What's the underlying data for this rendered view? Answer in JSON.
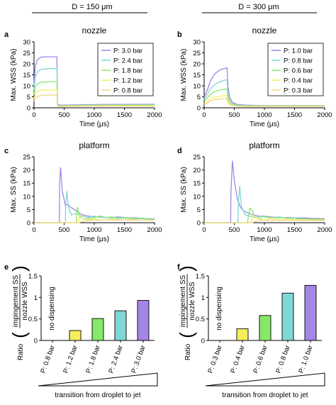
{
  "columns": [
    {
      "header": "D = 150 μm"
    },
    {
      "header": "D = 300 μm"
    }
  ],
  "colors": [
    "#a585e6",
    "#7fd8d5",
    "#86e86a",
    "#f5ee5a",
    "#f0d58a"
  ],
  "chart_data": [
    {
      "panel": "a",
      "type": "line",
      "title": "nozzle",
      "xlabel": "Time (μs)",
      "ylabel": "Max. WSS (kPa)",
      "xlim": [
        0,
        2000
      ],
      "ylim": [
        0,
        30
      ],
      "xticks": [
        0,
        500,
        1000,
        1500,
        2000
      ],
      "yticks": [
        0,
        5,
        10,
        15,
        20,
        25,
        30
      ],
      "legend": "top-right",
      "series": [
        {
          "name": "P: 3.0 bar",
          "x": [
            0,
            20,
            60,
            120,
            180,
            250,
            300,
            360,
            380,
            390,
            450,
            600,
            800,
            1200,
            2000
          ],
          "y": [
            10,
            19,
            22,
            23.1,
            23.2,
            23.2,
            23.2,
            23.2,
            23.2,
            1.5,
            1.2,
            1.3,
            1.4,
            1.5,
            1.6
          ]
        },
        {
          "name": "P: 2.4 bar",
          "x": [
            0,
            20,
            60,
            120,
            180,
            250,
            300,
            360,
            380,
            390,
            450,
            600,
            800,
            1200,
            2000
          ],
          "y": [
            8,
            14,
            16.5,
            17.5,
            17.7,
            17.8,
            17.8,
            17.8,
            17.8,
            1.2,
            1,
            1.1,
            1.2,
            1.3,
            1.4
          ]
        },
        {
          "name": "P: 1.8 bar",
          "x": [
            0,
            20,
            60,
            120,
            180,
            250,
            300,
            360,
            380,
            390,
            450,
            600,
            800,
            1200,
            2000
          ],
          "y": [
            6,
            9.5,
            11,
            11.6,
            11.7,
            11.8,
            11.8,
            11.8,
            11.8,
            1,
            0.9,
            1,
            1.1,
            1.2,
            1.2
          ]
        },
        {
          "name": "P: 1.2 bar",
          "x": [
            0,
            20,
            60,
            120,
            180,
            250,
            300,
            360,
            380,
            390,
            450,
            600,
            800,
            1200,
            2000
          ],
          "y": [
            4,
            6.5,
            7.6,
            8,
            8.1,
            8.1,
            8.1,
            8.1,
            8.1,
            0.8,
            0.7,
            0.8,
            0.9,
            1,
            1
          ]
        },
        {
          "name": "P: 0.8 bar",
          "x": [
            0,
            20,
            60,
            120,
            180,
            250,
            300,
            360,
            380,
            390,
            450,
            600,
            800,
            1200,
            2000
          ],
          "y": [
            3,
            4.5,
            5.2,
            5.6,
            5.7,
            5.8,
            5.8,
            5.8,
            5.8,
            0.6,
            0.6,
            0.7,
            0.8,
            0.8,
            0.8
          ]
        }
      ]
    },
    {
      "panel": "b",
      "type": "line",
      "title": "nozzle",
      "xlabel": "Time (μs)",
      "ylabel": "Max. WSS (kPa)",
      "xlim": [
        0,
        2000
      ],
      "ylim": [
        0,
        30
      ],
      "xticks": [
        0,
        500,
        1000,
        1500,
        2000
      ],
      "yticks": [
        0,
        5,
        10,
        15,
        20,
        25,
        30
      ],
      "legend": "top-right",
      "series": [
        {
          "name": "P: 1.0 bar",
          "x": [
            0,
            50,
            100,
            150,
            200,
            250,
            300,
            350,
            380,
            395,
            420,
            470,
            550,
            700,
            1000,
            2000
          ],
          "y": [
            5,
            8,
            12,
            14.5,
            16,
            17,
            17.6,
            18,
            18.2,
            10,
            5,
            2.5,
            1.5,
            1.2,
            1,
            1
          ]
        },
        {
          "name": "P: 0.8 bar",
          "x": [
            0,
            50,
            100,
            150,
            200,
            250,
            300,
            350,
            380,
            395,
            420,
            470,
            550,
            700,
            1000,
            2000
          ],
          "y": [
            4,
            6,
            8.5,
            10,
            11,
            11.8,
            12.2,
            12.6,
            12.8,
            7,
            3.5,
            2,
            1.3,
            1,
            0.9,
            0.9
          ]
        },
        {
          "name": "P: 0.6 bar",
          "x": [
            0,
            50,
            100,
            150,
            200,
            250,
            300,
            350,
            380,
            395,
            420,
            470,
            550,
            700,
            1000,
            2000
          ],
          "y": [
            3,
            4.5,
            6,
            7,
            7.6,
            8,
            8.3,
            8.5,
            8.6,
            5,
            2.5,
            1.5,
            1,
            0.8,
            0.8,
            0.8
          ]
        },
        {
          "name": "P: 0.4 bar",
          "x": [
            0,
            50,
            100,
            150,
            200,
            250,
            300,
            350,
            380,
            395,
            420,
            470,
            550,
            700,
            1000,
            2000
          ],
          "y": [
            2,
            3,
            4,
            4.6,
            5,
            5.2,
            5.4,
            5.5,
            5.6,
            3.5,
            2,
            1.2,
            0.8,
            0.7,
            0.7,
            0.7
          ]
        },
        {
          "name": "P: 0.3 bar",
          "x": [
            0,
            50,
            100,
            150,
            200,
            250,
            300,
            350,
            380,
            395,
            420,
            470,
            550,
            700,
            1000,
            2000
          ],
          "y": [
            1.5,
            2.2,
            3,
            3.5,
            3.8,
            4,
            4.1,
            4.2,
            4.2,
            2.5,
            1.5,
            1,
            0.7,
            0.6,
            0.6,
            0.6
          ]
        }
      ]
    },
    {
      "panel": "c",
      "type": "line",
      "title": "platform",
      "xlabel": "Time (μs)",
      "ylabel": "Max. SS (kPa)",
      "xlim": [
        0,
        2000
      ],
      "ylim": [
        0,
        25
      ],
      "xticks": [
        0,
        500,
        1000,
        1500,
        2000
      ],
      "yticks": [
        0,
        5,
        10,
        15,
        20,
        25
      ],
      "series": [
        {
          "name": "P: 3.0 bar",
          "x": [
            0,
            420,
            425,
            440,
            470,
            520,
            560,
            600,
            700,
            800,
            900,
            1000,
            1100,
            1200,
            1300,
            1400,
            1500,
            1600,
            1700,
            1800,
            1900,
            2000
          ],
          "y": [
            0,
            0,
            15,
            21,
            12,
            6.5,
            7,
            6,
            4.5,
            3,
            2.5,
            2.2,
            2.2,
            2,
            2,
            2.2,
            2,
            1.8,
            1.8,
            1.5,
            1.5,
            1.5
          ]
        },
        {
          "name": "P: 2.4 bar",
          "x": [
            0,
            520,
            525,
            545,
            570,
            620,
            700,
            800,
            900,
            1000,
            1100,
            1200,
            1300,
            1400,
            1500,
            1600,
            1700,
            1800,
            1900,
            2000
          ],
          "y": [
            0,
            0,
            7,
            12,
            6,
            3,
            3.5,
            2.5,
            2,
            2.5,
            2,
            2,
            1.8,
            2,
            1.8,
            1.7,
            1.5,
            1.5,
            1.4,
            1.4
          ]
        },
        {
          "name": "P: 1.8 bar",
          "x": [
            0,
            700,
            705,
            720,
            750,
            800,
            900,
            1000,
            1100,
            1200,
            1300,
            1400,
            1500,
            1600,
            1700,
            1800,
            1900,
            2000
          ],
          "y": [
            0,
            0,
            3,
            6,
            2.5,
            1.5,
            1.5,
            2,
            2.5,
            2,
            2.2,
            1.5,
            2,
            1.5,
            1.5,
            1.8,
            1.3,
            1.3
          ]
        },
        {
          "name": "P: 1.2 bar",
          "x": [
            0,
            720,
            740,
            760,
            800,
            900,
            1000,
            1100,
            1200,
            1300,
            1400,
            1500,
            1600,
            1700,
            1800,
            1900,
            2000
          ],
          "y": [
            0,
            0,
            1,
            3,
            1.5,
            1,
            1.5,
            1,
            1.2,
            1.5,
            1,
            1.2,
            1.3,
            1,
            1,
            1,
            1
          ]
        },
        {
          "name": "P: 0.8 bar",
          "x": [
            0,
            750,
            800,
            900,
            1000,
            1100,
            1200,
            1300,
            1400,
            1500,
            1600,
            1700,
            1800,
            1900,
            2000
          ],
          "y": [
            0,
            0,
            0.5,
            0.8,
            1,
            1,
            1.2,
            1,
            1,
            1.2,
            1,
            1,
            1,
            1,
            1
          ]
        }
      ]
    },
    {
      "panel": "d",
      "type": "line",
      "title": "platform",
      "xlabel": "Time (μs)",
      "ylabel": "Max. SS (kPa)",
      "xlim": [
        0,
        2000
      ],
      "ylim": [
        0,
        25
      ],
      "xticks": [
        0,
        500,
        1000,
        1500,
        2000
      ],
      "yticks": [
        0,
        5,
        10,
        15,
        20,
        25
      ],
      "series": [
        {
          "name": "P: 1.0 bar",
          "x": [
            0,
            440,
            445,
            470,
            500,
            550,
            600,
            650,
            700,
            800,
            900,
            1000,
            1100,
            1200,
            1300,
            1400,
            1500,
            1600,
            1700,
            1800,
            1900,
            2000
          ],
          "y": [
            0,
            0,
            12,
            23.5,
            16,
            9,
            6,
            4.5,
            4,
            3,
            2.5,
            2.5,
            2.2,
            2,
            2,
            2,
            1.8,
            1.8,
            1.8,
            1.6,
            1.6,
            1.5
          ]
        },
        {
          "name": "P: 0.8 bar",
          "x": [
            0,
            560,
            565,
            590,
            620,
            680,
            750,
            850,
            950,
            1050,
            1150,
            1250,
            1350,
            1450,
            1550,
            1650,
            1750,
            1850,
            2000
          ],
          "y": [
            0,
            0,
            6,
            14,
            6,
            3,
            2.5,
            2,
            2.5,
            2,
            2,
            2.2,
            1.8,
            1.8,
            1.5,
            1.5,
            1.4,
            1.3,
            1.3
          ]
        },
        {
          "name": "P: 0.6 bar",
          "x": [
            0,
            720,
            730,
            760,
            800,
            850,
            900,
            1000,
            1100,
            1200,
            1300,
            1400,
            1500,
            1600,
            1700,
            1800,
            1900,
            2000
          ],
          "y": [
            0,
            0,
            2,
            5.5,
            4.5,
            2,
            1.5,
            2.5,
            2,
            1.8,
            2,
            1.5,
            1.8,
            1.3,
            1.5,
            1.3,
            1.2,
            1.2
          ]
        },
        {
          "name": "P: 0.4 bar",
          "x": [
            0,
            760,
            790,
            830,
            900,
            1000,
            1100,
            1200,
            1300,
            1400,
            1500,
            1600,
            1700,
            1800,
            1900,
            2000
          ],
          "y": [
            0,
            0,
            1,
            2.5,
            1.5,
            1,
            1.5,
            1,
            1.2,
            1.5,
            1,
            1.2,
            1,
            1,
            1,
            1
          ]
        },
        {
          "name": "P: 0.3 bar",
          "x": [
            0,
            800,
            850,
            900,
            1000,
            1100,
            1200,
            1300,
            1400,
            1500,
            1600,
            1700,
            1800,
            1900,
            2000
          ],
          "y": [
            0,
            0,
            0.5,
            0.8,
            1,
            0.8,
            1,
            0.8,
            1,
            0.8,
            0.8,
            0.8,
            0.8,
            0.8,
            0.8
          ]
        }
      ]
    },
    {
      "panel": "e",
      "type": "bar",
      "ylabel": "Ratio",
      "ylabel_num": "impingement SS",
      "ylabel_den": "nozzle WSS",
      "ylim": [
        0,
        1.5
      ],
      "yticks": [
        0,
        0.5,
        1,
        1.5
      ],
      "ytick_labels": [
        "0",
        "0.5",
        "1",
        "1.5"
      ],
      "categories": [
        "P: 0.8 bar",
        "P: 1.2 bar",
        "P: 1.8 bar",
        "P: 2.4 bar",
        "P: 3.0 bar"
      ],
      "values": [
        0,
        0.23,
        0.51,
        0.69,
        0.93
      ],
      "annotation": "no dispensing",
      "xlabel": "transition from droplet to jet"
    },
    {
      "panel": "f",
      "type": "bar",
      "ylabel": "Ratio",
      "ylabel_num": "impingement SS",
      "ylabel_den": "nozzle WSS",
      "ylim": [
        0,
        1.5
      ],
      "yticks": [
        0,
        0.5,
        1,
        1.5
      ],
      "ytick_labels": [
        "0",
        "0.5",
        "1",
        "1.5"
      ],
      "categories": [
        "P: 0.3 bar",
        "P: 0.4 bar",
        "P: 0.6 bar",
        "P: 0.8 bar",
        "P: 1.0 bar"
      ],
      "values": [
        0,
        0.27,
        0.58,
        1.1,
        1.28
      ],
      "annotation": "no dispensing",
      "xlabel": "transition from droplet to jet"
    }
  ]
}
